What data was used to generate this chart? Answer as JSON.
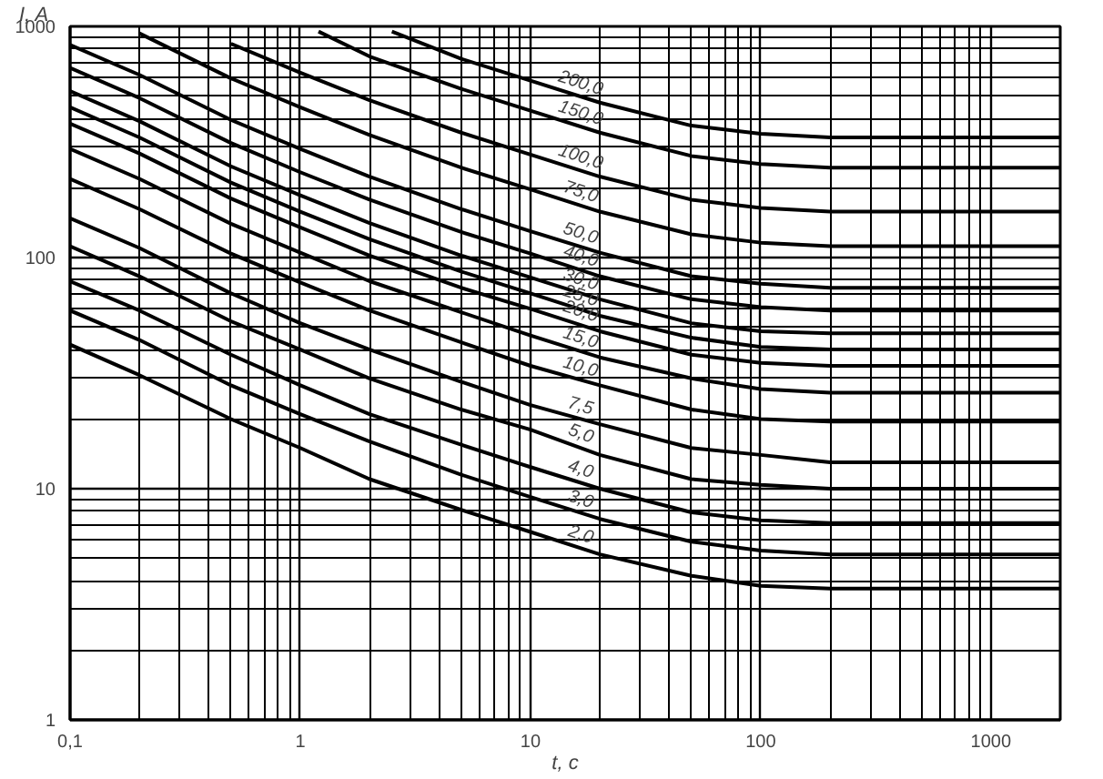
{
  "chart_data": {
    "type": "line",
    "xlabel": "t, c",
    "ylabel": "I, A",
    "log": "xy",
    "grid": true,
    "marker": "none",
    "line_style": "solid",
    "xlim": [
      0.1,
      2000
    ],
    "ylim": [
      1,
      1000
    ],
    "xticks": [
      {
        "value": 0.1,
        "label": "0,1"
      },
      1,
      10,
      100,
      1000
    ],
    "yticks": [
      1,
      10,
      100,
      1000
    ],
    "x": [
      0.1,
      0.2,
      0.5,
      1,
      2,
      5,
      10,
      20,
      50,
      100,
      200,
      2000
    ],
    "series": [
      {
        "name": "200,0",
        "color": "#000000",
        "x": [
          2.5,
          5,
          10,
          20,
          50,
          100,
          200,
          2000
        ],
        "values": [
          950,
          724,
          582,
          468,
          372,
          343,
          331,
          331
        ]
      },
      {
        "name": "150,0",
        "color": "#000000",
        "x": [
          1.2,
          2,
          5,
          10,
          20,
          50,
          100,
          200,
          2000
        ],
        "values": [
          950,
          741,
          537,
          432,
          347,
          275,
          254,
          245,
          245
        ]
      },
      {
        "name": "100,0",
        "color": "#000000",
        "values": [
          null,
          null,
          841,
          631,
          479,
          347,
          279,
          224,
          178,
          164,
          158,
          158
        ]
      },
      {
        "name": "75,0",
        "color": "#000000",
        "values": [
          null,
          933,
          596,
          447,
          339,
          245,
          197,
          158,
          126,
          116,
          112,
          112
        ]
      },
      {
        "name": "50,0",
        "color": "#000000",
        "values": [
          832,
          617,
          394,
          295,
          224,
          162,
          130,
          105,
          83,
          77,
          74,
          74
        ]
      },
      {
        "name": "40,0",
        "color": "#000000",
        "values": [
          661,
          490,
          313,
          234,
          178,
          129,
          104,
          83,
          66,
          61,
          59,
          59
        ]
      },
      {
        "name": "30,0",
        "color": "#000000",
        "values": [
          525,
          389,
          248,
          186,
          141,
          102,
          82,
          66,
          52,
          48,
          47,
          47
        ]
      },
      {
        "name": "25,0",
        "color": "#000000",
        "values": [
          447,
          331,
          211,
          158,
          120,
          87,
          70,
          56,
          45,
          41,
          40,
          40
        ]
      },
      {
        "name": "20,0",
        "color": "#000000",
        "values": [
          380,
          282,
          180,
          135,
          102,
          74,
          60,
          48,
          38,
          35,
          34,
          34
        ]
      },
      {
        "name": "15,0",
        "color": "#000000",
        "values": [
          295,
          219,
          140,
          105,
          79,
          58,
          46,
          37,
          30,
          27,
          26,
          26
        ]
      },
      {
        "name": "10,0",
        "color": "#000000",
        "values": [
          219,
          162,
          104,
          78,
          59,
          43,
          34,
          28,
          22,
          20,
          19.5,
          19.5
        ]
      },
      {
        "name": "7,5",
        "color": "#000000",
        "values": [
          148,
          110,
          70,
          52,
          40,
          29,
          23,
          19,
          15,
          14,
          13,
          13
        ]
      },
      {
        "name": "5,0",
        "color": "#000000",
        "values": [
          112,
          83,
          53,
          40,
          30,
          22,
          18,
          14,
          11,
          10.4,
          10,
          10
        ]
      },
      {
        "name": "4,0",
        "color": "#000000",
        "values": [
          79,
          59,
          38,
          28,
          21,
          15.5,
          12.4,
          10,
          7.9,
          7.3,
          7.1,
          7.1
        ]
      },
      {
        "name": "3,0",
        "color": "#000000",
        "values": [
          59,
          44,
          28,
          21,
          16,
          11.5,
          9.2,
          7.4,
          5.9,
          5.4,
          5.2,
          5.2
        ]
      },
      {
        "name": "2,0",
        "color": "#000000",
        "values": [
          42,
          31,
          20,
          15,
          11,
          8.1,
          6.5,
          5.2,
          4.2,
          3.8,
          3.7,
          3.7
        ]
      }
    ]
  }
}
